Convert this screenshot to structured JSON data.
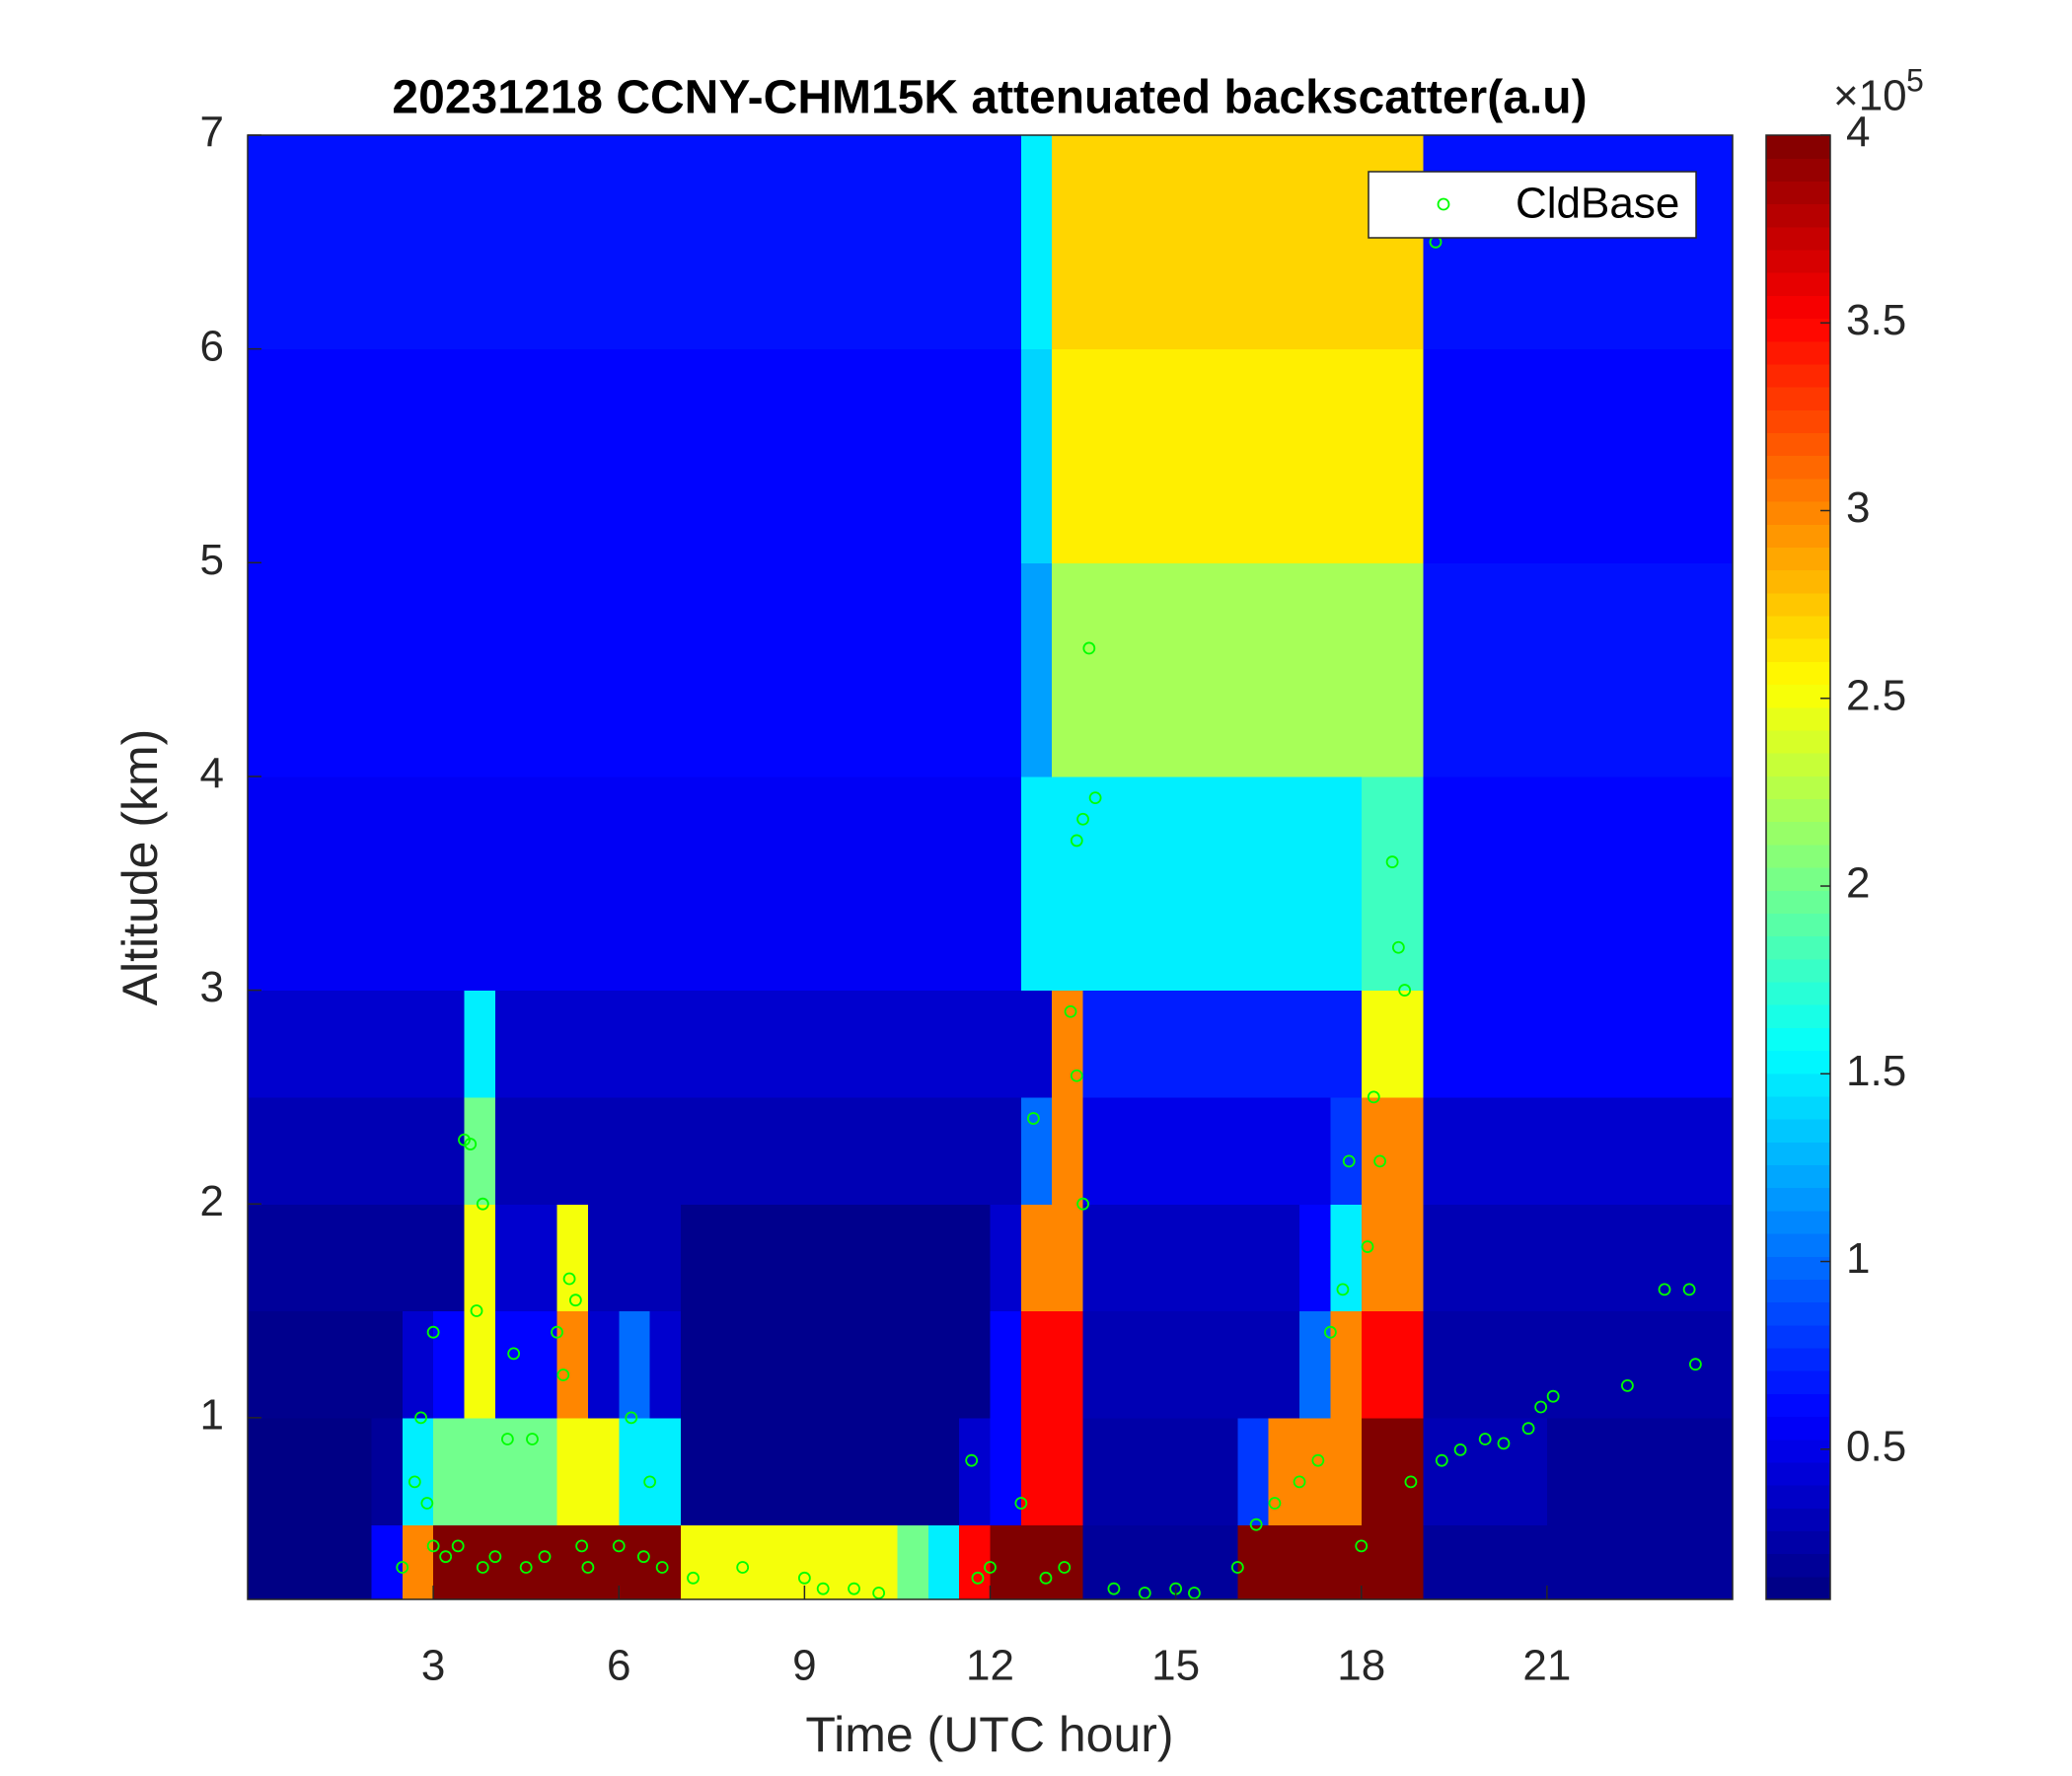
{
  "chart_data": {
    "type": "heatmap",
    "title": "20231218 CCNY-CHM15K attenuated backscatter(a.u)",
    "xlabel": "Time (UTC hour)",
    "ylabel": "Altitude (km)",
    "xlim": [
      0,
      24
    ],
    "xticks": [
      3,
      6,
      9,
      12,
      15,
      18,
      21
    ],
    "ylim": [
      0.15,
      7
    ],
    "yticks": [
      1,
      2,
      3,
      4,
      5,
      6,
      7
    ],
    "grid": false,
    "colormap": "jet",
    "clim": [
      10000,
      400000
    ],
    "cticks": [
      {
        "value": 50000,
        "label": "0.5"
      },
      {
        "value": 100000,
        "label": "1"
      },
      {
        "value": 150000,
        "label": "1.5"
      },
      {
        "value": 200000,
        "label": "2"
      },
      {
        "value": 250000,
        "label": "2.5"
      },
      {
        "value": 300000,
        "label": "3"
      },
      {
        "value": 350000,
        "label": "3.5"
      },
      {
        "value": 400000,
        "label": "4"
      }
    ],
    "colorbar_multiplier": {
      "base": "×10",
      "exponent": "5"
    },
    "x_edges": [
      0,
      0.5,
      1,
      1.5,
      2,
      2.5,
      3,
      3.5,
      4,
      4.5,
      5,
      5.5,
      6,
      6.5,
      7,
      7.5,
      8,
      8.5,
      9,
      9.5,
      10,
      10.5,
      11,
      11.5,
      12,
      12.5,
      13,
      13.5,
      14,
      14.5,
      15,
      15.5,
      16,
      16.5,
      17,
      17.5,
      18,
      18.5,
      19,
      19.5,
      20,
      20.5,
      21,
      21.5,
      22,
      22.5,
      23,
      23.5,
      24
    ],
    "y_edges": [
      0.15,
      0.5,
      1,
      1.5,
      2,
      2.5,
      3,
      4,
      5,
      6,
      7
    ],
    "z": [
      [
        12000,
        12000,
        12000,
        12000,
        60000,
        300000,
        400000,
        400000,
        400000,
        400000,
        400000,
        400000,
        400000,
        400000,
        250000,
        250000,
        250000,
        250000,
        250000,
        250000,
        250000,
        200000,
        150000,
        350000,
        400000,
        400000,
        400000,
        20000,
        20000,
        20000,
        20000,
        20000,
        400000,
        400000,
        400000,
        400000,
        400000,
        400000,
        20000,
        20000,
        20000,
        20000,
        20000,
        20000,
        20000,
        20000,
        20000,
        20000
      ],
      [
        12000,
        12000,
        12000,
        12000,
        20000,
        150000,
        200000,
        200000,
        200000,
        200000,
        250000,
        250000,
        150000,
        150000,
        15000,
        15000,
        15000,
        15000,
        15000,
        15000,
        15000,
        15000,
        15000,
        40000,
        60000,
        350000,
        350000,
        25000,
        25000,
        25000,
        25000,
        25000,
        80000,
        300000,
        300000,
        300000,
        400000,
        400000,
        30000,
        30000,
        30000,
        30000,
        20000,
        20000,
        20000,
        20000,
        20000,
        20000
      ],
      [
        15000,
        15000,
        15000,
        15000,
        15000,
        40000,
        60000,
        250000,
        60000,
        60000,
        300000,
        40000,
        100000,
        40000,
        15000,
        15000,
        15000,
        15000,
        15000,
        15000,
        15000,
        15000,
        15000,
        15000,
        60000,
        350000,
        350000,
        30000,
        30000,
        30000,
        30000,
        30000,
        30000,
        30000,
        100000,
        300000,
        350000,
        350000,
        25000,
        25000,
        25000,
        25000,
        25000,
        25000,
        25000,
        25000,
        25000,
        25000
      ],
      [
        20000,
        20000,
        20000,
        20000,
        20000,
        20000,
        20000,
        250000,
        40000,
        40000,
        250000,
        30000,
        30000,
        30000,
        15000,
        15000,
        15000,
        15000,
        15000,
        15000,
        15000,
        15000,
        15000,
        15000,
        40000,
        300000,
        300000,
        35000,
        35000,
        35000,
        35000,
        35000,
        35000,
        35000,
        60000,
        150000,
        300000,
        300000,
        30000,
        30000,
        30000,
        30000,
        30000,
        30000,
        30000,
        30000,
        30000,
        30000
      ],
      [
        30000,
        30000,
        30000,
        30000,
        30000,
        30000,
        30000,
        200000,
        30000,
        30000,
        30000,
        30000,
        30000,
        30000,
        30000,
        30000,
        30000,
        30000,
        30000,
        30000,
        30000,
        30000,
        30000,
        30000,
        30000,
        100000,
        300000,
        50000,
        50000,
        50000,
        50000,
        50000,
        50000,
        50000,
        50000,
        80000,
        300000,
        300000,
        40000,
        40000,
        40000,
        40000,
        40000,
        40000,
        40000,
        40000,
        40000,
        40000
      ],
      [
        40000,
        40000,
        40000,
        40000,
        40000,
        40000,
        40000,
        150000,
        40000,
        40000,
        40000,
        40000,
        40000,
        40000,
        40000,
        40000,
        40000,
        40000,
        40000,
        40000,
        40000,
        40000,
        40000,
        40000,
        40000,
        40000,
        300000,
        70000,
        70000,
        70000,
        70000,
        70000,
        70000,
        70000,
        70000,
        70000,
        250000,
        250000,
        60000,
        60000,
        60000,
        60000,
        60000,
        60000,
        60000,
        60000,
        60000,
        60000
      ],
      [
        55000,
        55000,
        55000,
        55000,
        55000,
        55000,
        55000,
        55000,
        55000,
        55000,
        55000,
        55000,
        55000,
        55000,
        55000,
        55000,
        55000,
        55000,
        55000,
        55000,
        55000,
        55000,
        55000,
        55000,
        55000,
        150000,
        150000,
        150000,
        150000,
        150000,
        150000,
        150000,
        150000,
        150000,
        150000,
        150000,
        180000,
        180000,
        60000,
        60000,
        60000,
        60000,
        60000,
        60000,
        60000,
        60000,
        60000,
        60000
      ],
      [
        60000,
        60000,
        60000,
        60000,
        60000,
        60000,
        60000,
        60000,
        60000,
        60000,
        60000,
        60000,
        60000,
        60000,
        60000,
        60000,
        60000,
        60000,
        60000,
        60000,
        60000,
        60000,
        60000,
        60000,
        60000,
        120000,
        220000,
        220000,
        220000,
        220000,
        220000,
        220000,
        220000,
        220000,
        220000,
        220000,
        220000,
        220000,
        65000,
        65000,
        65000,
        65000,
        65000,
        65000,
        65000,
        65000,
        65000,
        65000
      ],
      [
        60000,
        60000,
        60000,
        60000,
        60000,
        60000,
        60000,
        60000,
        60000,
        60000,
        60000,
        60000,
        60000,
        60000,
        60000,
        60000,
        60000,
        60000,
        60000,
        60000,
        60000,
        60000,
        60000,
        60000,
        60000,
        140000,
        260000,
        260000,
        260000,
        260000,
        260000,
        260000,
        260000,
        260000,
        260000,
        260000,
        260000,
        260000,
        60000,
        60000,
        60000,
        60000,
        60000,
        60000,
        60000,
        60000,
        60000,
        60000
      ],
      [
        65000,
        65000,
        65000,
        65000,
        65000,
        65000,
        65000,
        65000,
        65000,
        65000,
        65000,
        65000,
        65000,
        65000,
        65000,
        65000,
        65000,
        65000,
        65000,
        65000,
        65000,
        65000,
        65000,
        65000,
        65000,
        150000,
        270000,
        270000,
        270000,
        270000,
        270000,
        270000,
        270000,
        270000,
        270000,
        270000,
        270000,
        270000,
        65000,
        65000,
        65000,
        65000,
        65000,
        65000,
        65000,
        65000,
        65000,
        65000
      ]
    ],
    "series": [
      {
        "name": "CldBase",
        "type": "scatter",
        "color": "#00ff00",
        "x": [
          2.5,
          2.7,
          2.8,
          2.9,
          3.0,
          3.0,
          3.2,
          3.4,
          3.5,
          3.6,
          3.7,
          3.8,
          3.8,
          4.0,
          4.2,
          4.3,
          4.5,
          4.6,
          4.8,
          5.0,
          5.1,
          5.2,
          5.3,
          5.4,
          5.5,
          6.0,
          6.2,
          6.4,
          6.5,
          6.7,
          7.2,
          8.0,
          9.0,
          9.3,
          9.8,
          10.2,
          11.7,
          11.8,
          12.0,
          12.5,
          12.7,
          12.9,
          13.2,
          13.3,
          13.4,
          13.5,
          13.6,
          13.7,
          13.5,
          13.4,
          14.0,
          14.5,
          15.0,
          15.3,
          16.0,
          16.3,
          16.6,
          17.0,
          17.3,
          17.5,
          17.7,
          17.8,
          18.0,
          18.1,
          18.2,
          18.3,
          18.5,
          18.6,
          18.7,
          18.8,
          19.2,
          19.3,
          19.6,
          20.0,
          20.3,
          20.7,
          20.9,
          21.1,
          22.3,
          22.9,
          23.3,
          23.4
        ],
        "y": [
          0.3,
          0.7,
          1.0,
          0.6,
          0.4,
          1.4,
          0.35,
          0.4,
          2.3,
          2.28,
          1.5,
          2.0,
          0.3,
          0.35,
          0.9,
          1.3,
          0.3,
          0.9,
          0.35,
          1.4,
          1.2,
          1.65,
          1.55,
          0.4,
          0.3,
          0.4,
          1.0,
          0.35,
          0.7,
          0.3,
          0.25,
          0.3,
          0.25,
          0.2,
          0.2,
          0.18,
          0.8,
          0.25,
          0.3,
          0.6,
          2.4,
          0.25,
          0.3,
          2.9,
          3.7,
          3.8,
          4.6,
          3.9,
          2.0,
          2.6,
          0.2,
          0.18,
          0.2,
          0.18,
          0.3,
          0.5,
          0.6,
          0.7,
          0.8,
          1.4,
          1.6,
          2.2,
          0.4,
          1.8,
          2.5,
          2.2,
          3.6,
          3.2,
          3.0,
          0.7,
          6.5,
          0.8,
          0.85,
          0.9,
          0.88,
          0.95,
          1.05,
          1.1,
          1.15,
          1.6,
          1.6,
          1.25
        ]
      }
    ],
    "legend": "upper right"
  }
}
